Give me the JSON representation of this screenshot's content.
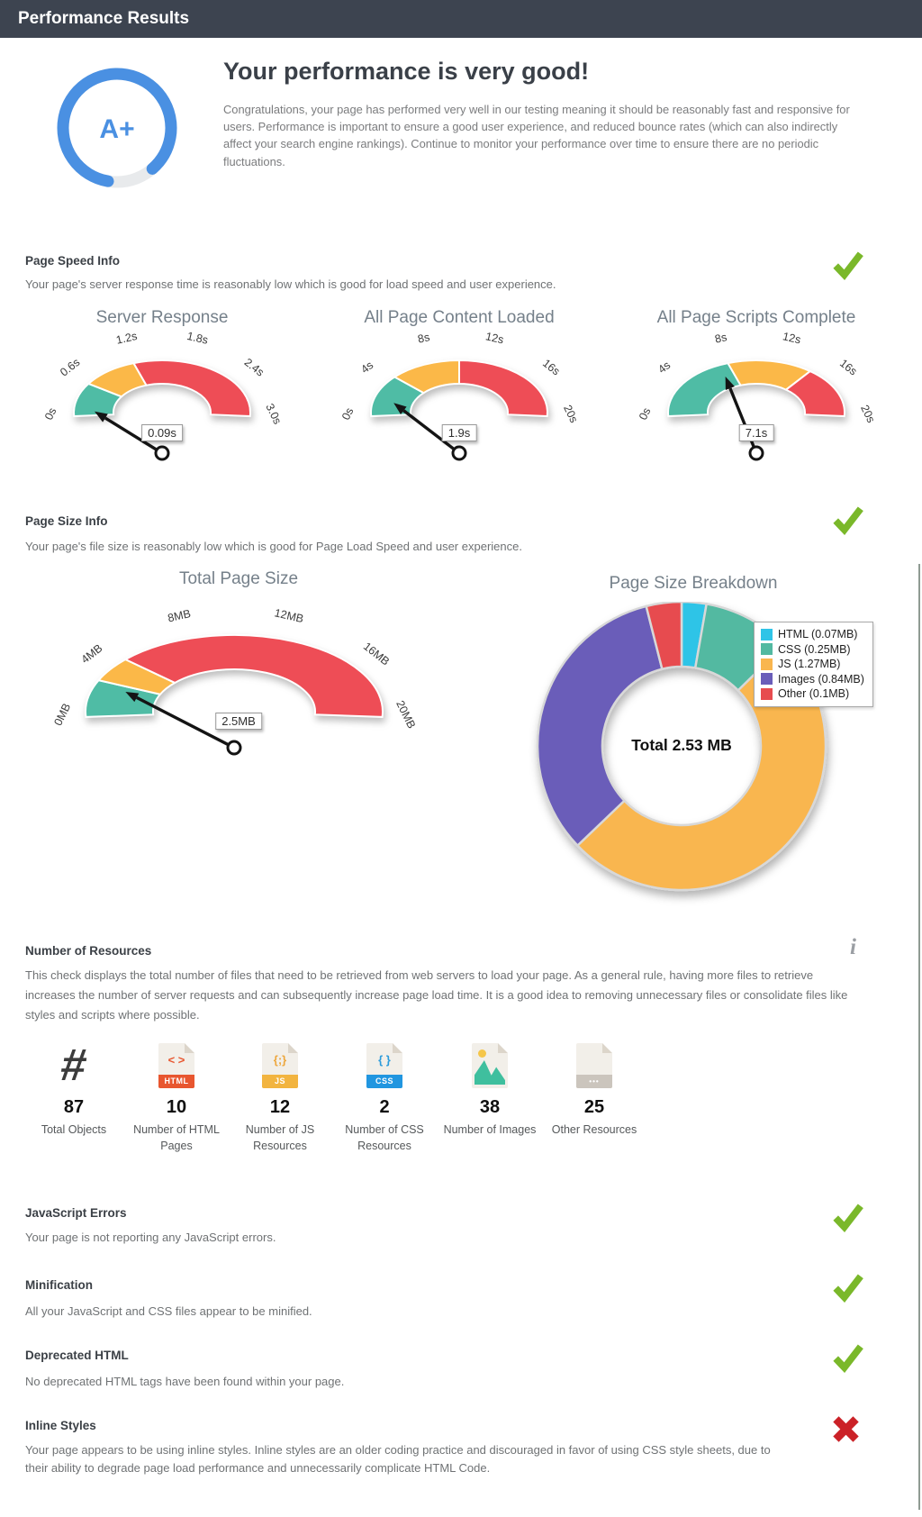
{
  "header": {
    "title": "Performance Results"
  },
  "hero": {
    "grade": "A+",
    "ring_percent": 86,
    "ring_color": "#4a90e2",
    "ring_track_color": "#e8eaec",
    "heading": "Your performance is very good!",
    "body": "Congratulations, your page has performed very well in our testing meaning it should be reasonably fast and responsive for users. Performance is important to ensure a good user experience, and reduced bounce rates (which can also indirectly affect your search engine rankings). Continue to monitor your performance over time to ensure there are no periodic fluctuations."
  },
  "sections": {
    "page_speed": {
      "title": "Page Speed Info",
      "body": "Your page's server response time is reasonably low which is good for load speed and user experience.",
      "status": "pass"
    },
    "page_size": {
      "title": "Page Size Info",
      "body": "Your page's file size is reasonably low which is good for Page Load Speed and user experience.",
      "status": "pass"
    },
    "resources": {
      "title": "Number of Resources",
      "body": "This check displays the total number of files that need to be retrieved from web servers to load your page. As a general rule, having more files to retrieve increases the number of server requests and can subsequently increase page load time. It is a good idea to removing unnecessary files or consolidate files like styles and scripts where possible.",
      "status": "info"
    },
    "javascript_errors": {
      "title": "JavaScript Errors",
      "body": "Your page is not reporting any JavaScript errors.",
      "status": "pass"
    },
    "minification": {
      "title": "Minification",
      "body": "All your JavaScript and CSS files appear to be minified.",
      "status": "pass"
    },
    "deprecated_html": {
      "title": "Deprecated HTML",
      "body": "No deprecated HTML tags have been found within your page.",
      "status": "pass"
    },
    "inline_styles": {
      "title": "Inline Styles",
      "body": "Your page appears to be using inline styles. Inline styles are an older coding practice and discouraged in favor of using CSS style sheets, due to their ability to degrade page load performance and unnecessarily complicate HTML Code.",
      "status": "fail"
    }
  },
  "resource_counts": [
    {
      "icon": "hash-icon",
      "icon_glyph": "#",
      "value": "87",
      "label": "Total Objects"
    },
    {
      "icon": "html-file-icon",
      "icon_glyph": "< >",
      "icon_label": "HTML",
      "value": "10",
      "label": "Number of HTML Pages"
    },
    {
      "icon": "js-file-icon",
      "icon_glyph": "{;}",
      "icon_label": "JS",
      "value": "12",
      "label": "Number of JS Resources"
    },
    {
      "icon": "css-file-icon",
      "icon_glyph": "{ }",
      "icon_label": "CSS",
      "value": "2",
      "label": "Number of CSS Resources"
    },
    {
      "icon": "image-file-icon",
      "value": "38",
      "label": "Number of Images"
    },
    {
      "icon": "other-file-icon",
      "icon_label": "•••",
      "value": "25",
      "label": "Other Resources"
    }
  ],
  "chart_data": [
    {
      "type": "gauge",
      "title": "Server Response",
      "unit": "s",
      "min": 0,
      "max": 3,
      "value": 0.09,
      "value_label": "0.09s",
      "ticks": [
        {
          "v": 0,
          "label": "0s"
        },
        {
          "v": 0.6,
          "label": "0.6s"
        },
        {
          "v": 1.2,
          "label": "1.2s"
        },
        {
          "v": 1.8,
          "label": "1.8s"
        },
        {
          "v": 2.4,
          "label": "2.4s"
        },
        {
          "v": 3,
          "label": "3.0s"
        }
      ],
      "segments": [
        {
          "from": 0,
          "to": 0.6,
          "color": "#4fbca5"
        },
        {
          "from": 0.6,
          "to": 1.2,
          "color": "#fbb848"
        },
        {
          "from": 1.2,
          "to": 3,
          "color": "#ee4d56"
        }
      ]
    },
    {
      "type": "gauge",
      "title": "All Page Content Loaded",
      "unit": "s",
      "min": 0,
      "max": 20,
      "value": 1.9,
      "value_label": "1.9s",
      "ticks": [
        {
          "v": 0,
          "label": "0s"
        },
        {
          "v": 4,
          "label": "4s"
        },
        {
          "v": 8,
          "label": "8s"
        },
        {
          "v": 12,
          "label": "12s"
        },
        {
          "v": 16,
          "label": "16s"
        },
        {
          "v": 20,
          "label": "20s"
        }
      ],
      "segments": [
        {
          "from": 0,
          "to": 5,
          "color": "#4fbca5"
        },
        {
          "from": 5,
          "to": 10,
          "color": "#fbb848"
        },
        {
          "from": 10,
          "to": 20,
          "color": "#ee4d56"
        }
      ]
    },
    {
      "type": "gauge",
      "title": "All Page Scripts Complete",
      "unit": "s",
      "min": 0,
      "max": 20,
      "value": 7.1,
      "value_label": "7.1s",
      "ticks": [
        {
          "v": 0,
          "label": "0s"
        },
        {
          "v": 4,
          "label": "4s"
        },
        {
          "v": 8,
          "label": "8s"
        },
        {
          "v": 12,
          "label": "12s"
        },
        {
          "v": 16,
          "label": "16s"
        },
        {
          "v": 20,
          "label": "20s"
        }
      ],
      "segments": [
        {
          "from": 0,
          "to": 8,
          "color": "#4fbca5"
        },
        {
          "from": 8,
          "to": 14,
          "color": "#fbb848"
        },
        {
          "from": 14,
          "to": 20,
          "color": "#ee4d56"
        }
      ]
    },
    {
      "type": "gauge",
      "title": "Total Page Size",
      "unit": "MB",
      "min": 0,
      "max": 20,
      "value": 2.5,
      "value_label": "2.5MB",
      "ticks": [
        {
          "v": 0,
          "label": "0MB"
        },
        {
          "v": 4,
          "label": "4MB"
        },
        {
          "v": 8,
          "label": "8MB"
        },
        {
          "v": 12,
          "label": "12MB"
        },
        {
          "v": 16,
          "label": "16MB"
        },
        {
          "v": 20,
          "label": "20MB"
        }
      ],
      "segments": [
        {
          "from": 0,
          "to": 3,
          "color": "#4fbca5"
        },
        {
          "from": 3,
          "to": 5,
          "color": "#fbb848"
        },
        {
          "from": 5,
          "to": 20,
          "color": "#ee4d56"
        }
      ]
    },
    {
      "type": "donut",
      "title": "Page Size Breakdown",
      "center_label": "Total 2.53 MB",
      "total_mb": 2.53,
      "slices": [
        {
          "label": "HTML",
          "value": 0.07,
          "unit": "MB",
          "color": "#2fc4e7",
          "legend": "HTML (0.07MB)"
        },
        {
          "label": "CSS",
          "value": 0.25,
          "unit": "MB",
          "color": "#52b9a1",
          "legend": "CSS (0.25MB)"
        },
        {
          "label": "JS",
          "value": 1.27,
          "unit": "MB",
          "color": "#f9b64f",
          "legend": "JS (1.27MB)"
        },
        {
          "label": "Images",
          "value": 0.84,
          "unit": "MB",
          "color": "#6a5db9",
          "legend": "Images (0.84MB)"
        },
        {
          "label": "Other",
          "value": 0.1,
          "unit": "MB",
          "color": "#e74c4f",
          "legend": "Other (0.1MB)"
        }
      ]
    }
  ],
  "colors": {
    "header_bg": "#3d4450",
    "status_pass": "#7ab82a",
    "status_fail": "#cb2127",
    "gauge_green": "#4fbca5",
    "gauge_orange": "#fbb848",
    "gauge_red": "#ee4d56"
  }
}
